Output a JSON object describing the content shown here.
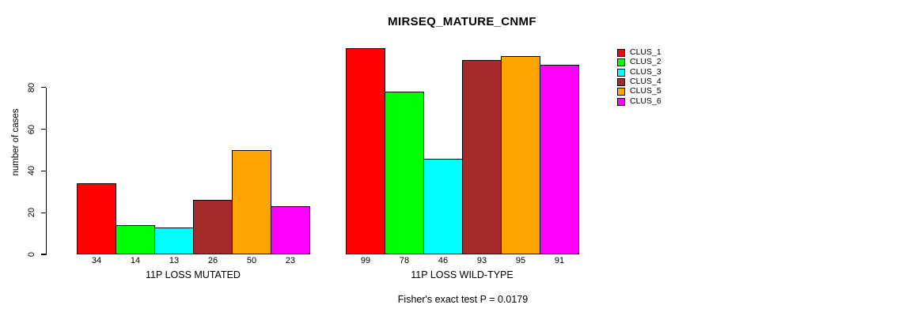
{
  "chart_data": {
    "type": "bar",
    "title": "MIRSEQ_MATURE_CNMF",
    "ylabel": "number of cases",
    "yticks": [
      0,
      20,
      40,
      60,
      80
    ],
    "ylim": [
      0,
      99
    ],
    "grid": false,
    "legend_position": "top-right",
    "legend": [
      "CLUS_1",
      "CLUS_2",
      "CLUS_3",
      "CLUS_4",
      "CLUS_5",
      "CLUS_6"
    ],
    "colors": [
      "#FF0000",
      "#00FF00",
      "#00FFFF",
      "#A52A2A",
      "#FFA500",
      "#FF00FF"
    ],
    "groups": [
      {
        "label": "11P LOSS MUTATED",
        "values": [
          34,
          14,
          13,
          26,
          50,
          23
        ]
      },
      {
        "label": "11P LOSS WILD-TYPE",
        "values": [
          99,
          78,
          46,
          93,
          95,
          91
        ]
      }
    ],
    "bar_value_labels": true,
    "annotation": "Fisher's exact test P = 0.0179"
  }
}
